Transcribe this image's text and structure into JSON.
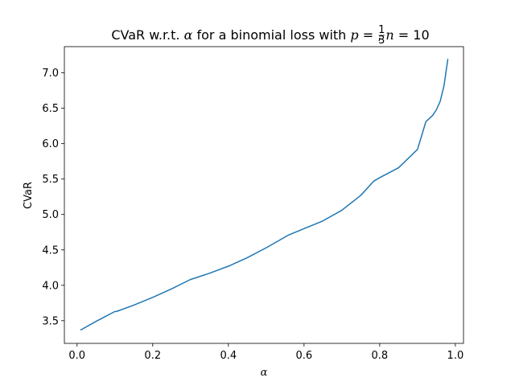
{
  "chart_data": {
    "type": "line",
    "title_parts": {
      "prefix": "CVaR w.r.t. ",
      "alpha_symbol": "α",
      "middle": " for a binomial loss with ",
      "p_symbol": "p",
      "equals": " = ",
      "fraction_numerator": "1",
      "fraction_denominator": "3",
      "separator": ", ",
      "n_symbol": "n",
      "n_value": " = 10"
    },
    "xlabel": "α",
    "ylabel": "CVaR",
    "xlim": [
      -0.0335,
      1.0215
    ],
    "ylim": [
      3.18,
      7.37
    ],
    "x_ticks": [
      0.0,
      0.2,
      0.4,
      0.6,
      0.8,
      1.0
    ],
    "x_tick_labels": [
      "0.0",
      "0.2",
      "0.4",
      "0.6",
      "0.8",
      "1.0"
    ],
    "y_ticks": [
      3.5,
      4.0,
      4.5,
      5.0,
      5.5,
      6.0,
      6.5,
      7.0
    ],
    "y_tick_labels": [
      "3.5",
      "4.0",
      "4.5",
      "5.0",
      "5.5",
      "6.0",
      "6.5",
      "7.0"
    ],
    "grid": false,
    "line_color": "#1f77b4",
    "series": [
      {
        "x": [
          0.01,
          0.05,
          0.1,
          0.104,
          0.15,
          0.2,
          0.25,
          0.299,
          0.35,
          0.4,
          0.45,
          0.5,
          0.559,
          0.6,
          0.65,
          0.7,
          0.75,
          0.784,
          0.8,
          0.85,
          0.9,
          0.922,
          0.94,
          0.95,
          0.96,
          0.97,
          0.98
        ],
        "y": [
          3.37,
          3.49,
          3.63,
          3.63,
          3.72,
          3.83,
          3.95,
          4.08,
          4.17,
          4.27,
          4.39,
          4.53,
          4.71,
          4.8,
          4.91,
          5.06,
          5.27,
          5.47,
          5.52,
          5.66,
          5.92,
          6.31,
          6.4,
          6.48,
          6.6,
          6.82,
          7.19
        ]
      }
    ]
  }
}
